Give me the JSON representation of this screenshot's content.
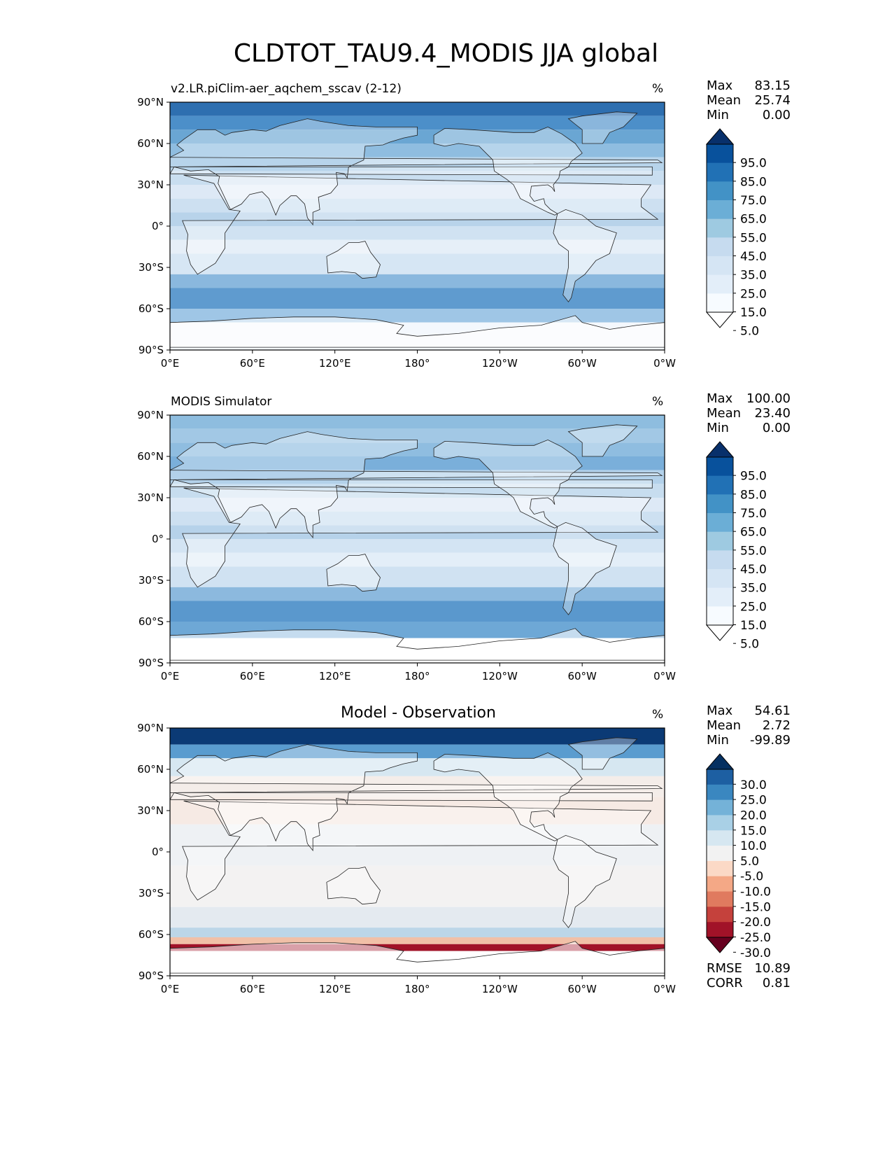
{
  "figure": {
    "title": "CLDTOT_TAU9.4_MODIS JJA global"
  },
  "chart_data": [
    {
      "type": "heatmap",
      "title": "v2.LR.piClim-aer_aqchem_sscav (2-12)",
      "units": "%",
      "stats": {
        "max": "83.15",
        "mean": "25.74",
        "min": "0.00"
      },
      "stat_labels": {
        "max": "Max",
        "mean": "Mean",
        "min": "Min"
      },
      "xlabels": [
        "0°E",
        "60°E",
        "120°E",
        "180°",
        "120°W",
        "60°W",
        "0°W"
      ],
      "ylabels": [
        "90°N",
        "60°N",
        "30°N",
        "0°",
        "30°S",
        "60°S",
        "90°S"
      ],
      "xlim": [
        0,
        360
      ],
      "ylim": [
        -90,
        90
      ],
      "colorbar": {
        "levels": [
          "95.0",
          "85.0",
          "75.0",
          "65.0",
          "55.0",
          "45.0",
          "35.0",
          "25.0",
          "15.0",
          "5.0"
        ],
        "colors": [
          "#08306b",
          "#08519c",
          "#2171b5",
          "#4292c6",
          "#6baed6",
          "#9ecae1",
          "#c6dbef",
          "#d5e5f4",
          "#e3eef9",
          "#f7fbff",
          "#ffffff"
        ]
      }
    },
    {
      "type": "heatmap",
      "title": "MODIS Simulator",
      "units": "%",
      "stats": {
        "max": "100.00",
        "mean": "23.40",
        "min": "0.00"
      },
      "stat_labels": {
        "max": "Max",
        "mean": "Mean",
        "min": "Min"
      },
      "xlabels": [
        "0°E",
        "60°E",
        "120°E",
        "180°",
        "120°W",
        "60°W",
        "0°W"
      ],
      "ylabels": [
        "90°N",
        "60°N",
        "30°N",
        "0°",
        "30°S",
        "60°S",
        "90°S"
      ],
      "xlim": [
        0,
        360
      ],
      "ylim": [
        -90,
        90
      ],
      "colorbar": {
        "levels": [
          "95.0",
          "85.0",
          "75.0",
          "65.0",
          "55.0",
          "45.0",
          "35.0",
          "25.0",
          "15.0",
          "5.0"
        ],
        "colors": [
          "#08306b",
          "#08519c",
          "#2171b5",
          "#4292c6",
          "#6baed6",
          "#9ecae1",
          "#c6dbef",
          "#d5e5f4",
          "#e3eef9",
          "#f7fbff",
          "#ffffff"
        ]
      }
    },
    {
      "type": "heatmap",
      "title": "Model - Observation",
      "units": "%",
      "stats": {
        "max": "54.61",
        "mean": "2.72",
        "min": "-99.89"
      },
      "stat_labels": {
        "max": "Max",
        "mean": "Mean",
        "min": "Min"
      },
      "extra_stats": {
        "rmse_label": "RMSE",
        "rmse": "10.89",
        "corr_label": "CORR",
        "corr": "0.81"
      },
      "xlabels": [
        "0°E",
        "60°E",
        "120°E",
        "180°",
        "120°W",
        "60°W",
        "0°W"
      ],
      "ylabels": [
        "90°N",
        "60°N",
        "30°N",
        "0°",
        "30°S",
        "60°S",
        "90°S"
      ],
      "xlim": [
        0,
        360
      ],
      "ylim": [
        -90,
        90
      ],
      "colorbar": {
        "levels": [
          "30.0",
          "25.0",
          "20.0",
          "15.0",
          "10.0",
          "5.0",
          "-5.0",
          "-10.0",
          "-15.0",
          "-20.0",
          "-25.0",
          "-30.0"
        ],
        "colors": [
          "#053061",
          "#1d5fa2",
          "#3a87c0",
          "#74b2d8",
          "#a9d0e6",
          "#d6e7f1",
          "#f2f2f2",
          "#fbd9c6",
          "#f4a886",
          "#e07a5f",
          "#c5413c",
          "#a11228",
          "#67001f"
        ]
      }
    }
  ]
}
